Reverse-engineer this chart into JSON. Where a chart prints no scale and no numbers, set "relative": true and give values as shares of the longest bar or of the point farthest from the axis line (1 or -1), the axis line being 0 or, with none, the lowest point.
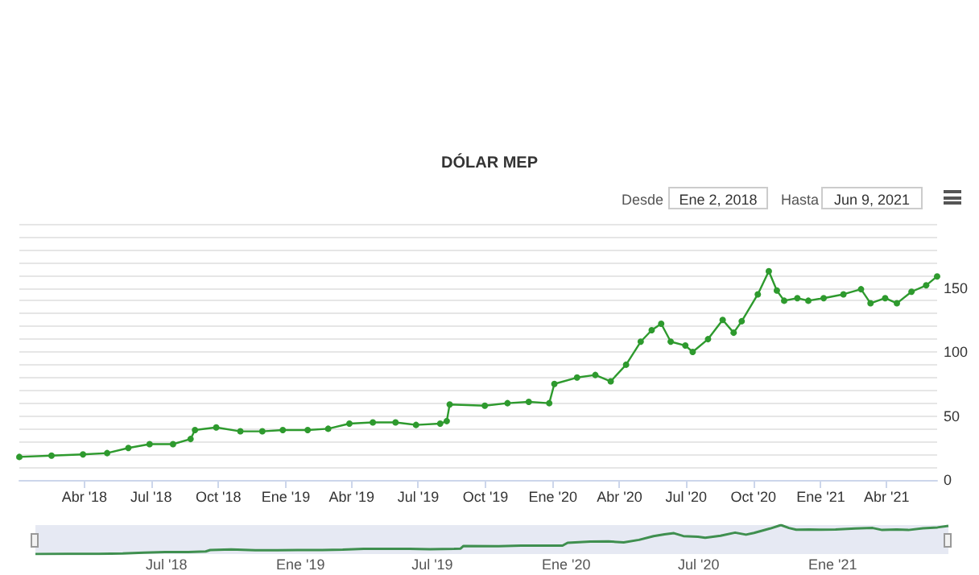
{
  "chart_data": [
    {
      "type": "line",
      "title": "DÓLAR MEP",
      "annotations": [
        "Desde",
        "Ene 2, 2018",
        "Hasta",
        "Jun 9, 2021"
      ],
      "x": [
        "2018-01-02",
        "2018-02-15",
        "2018-03-30",
        "2018-05-02",
        "2018-05-31",
        "2018-06-29",
        "2018-07-31",
        "2018-08-24",
        "2018-08-30",
        "2018-09-28",
        "2018-10-31",
        "2018-11-30",
        "2018-12-28",
        "2019-01-31",
        "2019-02-28",
        "2019-03-29",
        "2019-04-30",
        "2019-05-31",
        "2019-06-28",
        "2019-07-31",
        "2019-08-09",
        "2019-08-13",
        "2019-09-30",
        "2019-10-31",
        "2019-11-29",
        "2019-12-27",
        "2020-01-03",
        "2020-02-03",
        "2020-02-28",
        "2020-03-20",
        "2020-04-10",
        "2020-04-30",
        "2020-05-15",
        "2020-05-28",
        "2020-06-10",
        "2020-06-30",
        "2020-07-10",
        "2020-07-31",
        "2020-08-20",
        "2020-09-04",
        "2020-09-15",
        "2020-10-07",
        "2020-10-22",
        "2020-11-02",
        "2020-11-12",
        "2020-11-30",
        "2020-12-15",
        "2021-01-05",
        "2021-02-01",
        "2021-02-25",
        "2021-03-10",
        "2021-03-30",
        "2021-04-15",
        "2021-05-05",
        "2021-05-25",
        "2021-06-09"
      ],
      "series": [
        {
          "color": "#2e9a2e",
          "values": [
            18,
            19,
            20,
            21,
            25,
            28,
            28,
            32,
            39,
            41,
            38,
            38,
            39,
            39,
            40,
            44,
            45,
            45,
            43,
            44,
            46,
            59,
            58,
            60,
            61,
            60,
            75,
            80,
            82,
            77,
            90,
            108,
            117,
            122,
            108,
            105,
            100,
            110,
            125,
            115,
            124,
            145,
            163,
            148,
            140,
            142,
            140,
            142,
            145,
            149,
            138,
            142,
            138,
            147,
            152,
            159
          ]
        }
      ],
      "xlim": [
        "2018-01-02",
        "2021-06-09"
      ],
      "xticks": [
        {
          "value": "2018-04-01",
          "label": "Abr '18"
        },
        {
          "value": "2018-07-01",
          "label": "Jul '18"
        },
        {
          "value": "2018-10-01",
          "label": "Oct '18"
        },
        {
          "value": "2019-01-01",
          "label": "Ene '19"
        },
        {
          "value": "2019-04-01",
          "label": "Abr '19"
        },
        {
          "value": "2019-07-01",
          "label": "Jul '19"
        },
        {
          "value": "2019-10-01",
          "label": "Oct '19"
        },
        {
          "value": "2020-01-01",
          "label": "Ene '20"
        },
        {
          "value": "2020-04-01",
          "label": "Abr '20"
        },
        {
          "value": "2020-07-01",
          "label": "Jul '20"
        },
        {
          "value": "2020-10-01",
          "label": "Oct '20"
        },
        {
          "value": "2021-01-01",
          "label": "Ene '21"
        },
        {
          "value": "2021-04-01",
          "label": "Abr '21"
        }
      ],
      "ylim": [
        0,
        200
      ],
      "yticks": [
        0,
        {
          "value": 10,
          "label": null
        },
        {
          "value": 20,
          "label": null
        },
        {
          "value": 30,
          "label": null
        },
        {
          "value": 40,
          "label": null
        },
        50,
        {
          "value": 60,
          "label": null
        },
        {
          "value": 70,
          "label": null
        },
        {
          "value": 80,
          "label": null
        },
        {
          "value": 90,
          "label": null
        },
        100,
        {
          "value": 110,
          "label": null
        },
        {
          "value": 120,
          "label": null
        },
        {
          "value": 130,
          "label": null
        },
        {
          "value": 140,
          "label": null
        },
        150,
        {
          "value": 160,
          "label": null
        },
        {
          "value": 170,
          "label": null
        },
        {
          "value": 180,
          "label": null
        },
        {
          "value": 190,
          "label": null
        },
        {
          "value": 200,
          "label": null
        }
      ],
      "grid": "y",
      "marker": "circle",
      "line_style": "solid"
    },
    {
      "type": "line",
      "relative": true,
      "tick_labels": "x",
      "x": [
        "2018-01-02",
        "2018-02-15",
        "2018-03-30",
        "2018-05-02",
        "2018-05-31",
        "2018-06-29",
        "2018-07-31",
        "2018-08-24",
        "2018-08-30",
        "2018-09-28",
        "2018-10-31",
        "2018-11-30",
        "2018-12-28",
        "2019-01-31",
        "2019-02-28",
        "2019-03-29",
        "2019-04-30",
        "2019-05-31",
        "2019-06-28",
        "2019-07-31",
        "2019-08-09",
        "2019-08-13",
        "2019-09-30",
        "2019-10-31",
        "2019-11-29",
        "2019-12-27",
        "2020-01-03",
        "2020-02-03",
        "2020-02-28",
        "2020-03-20",
        "2020-04-10",
        "2020-04-30",
        "2020-05-15",
        "2020-05-28",
        "2020-06-10",
        "2020-06-30",
        "2020-07-10",
        "2020-07-31",
        "2020-08-20",
        "2020-09-04",
        "2020-09-15",
        "2020-10-07",
        "2020-10-22",
        "2020-11-02",
        "2020-11-12",
        "2020-11-30",
        "2020-12-15",
        "2021-01-05",
        "2021-02-01",
        "2021-02-25",
        "2021-03-10",
        "2021-03-30",
        "2021-04-15",
        "2021-05-05",
        "2021-05-25",
        "2021-06-09"
      ],
      "series": [
        {
          "color": "#3f8f4f",
          "values": [
            0,
            0.01,
            0.01,
            0.02,
            0.05,
            0.07,
            0.07,
            0.09,
            0.14,
            0.16,
            0.13,
            0.13,
            0.14,
            0.14,
            0.15,
            0.18,
            0.18,
            0.18,
            0.17,
            0.18,
            0.19,
            0.28,
            0.27,
            0.29,
            0.29,
            0.29,
            0.39,
            0.43,
            0.44,
            0.4,
            0.49,
            0.62,
            0.68,
            0.72,
            0.62,
            0.6,
            0.56,
            0.63,
            0.74,
            0.67,
            0.73,
            0.88,
            1,
            0.9,
            0.84,
            0.85,
            0.84,
            0.85,
            0.88,
            0.9,
            0.83,
            0.85,
            0.83,
            0.89,
            0.92,
            0.97
          ]
        }
      ],
      "xlim": [
        "2018-01-02",
        "2021-06-09"
      ],
      "xticks": [
        {
          "value": "2018-07-01",
          "label": "Jul '18"
        },
        {
          "value": "2019-01-01",
          "label": "Ene '19"
        },
        {
          "value": "2019-07-01",
          "label": "Jul '19"
        },
        {
          "value": "2020-01-01",
          "label": "Ene '20"
        },
        {
          "value": "2020-07-01",
          "label": "Jul '20"
        },
        {
          "value": "2021-01-01",
          "label": "Ene '21"
        }
      ]
    }
  ]
}
